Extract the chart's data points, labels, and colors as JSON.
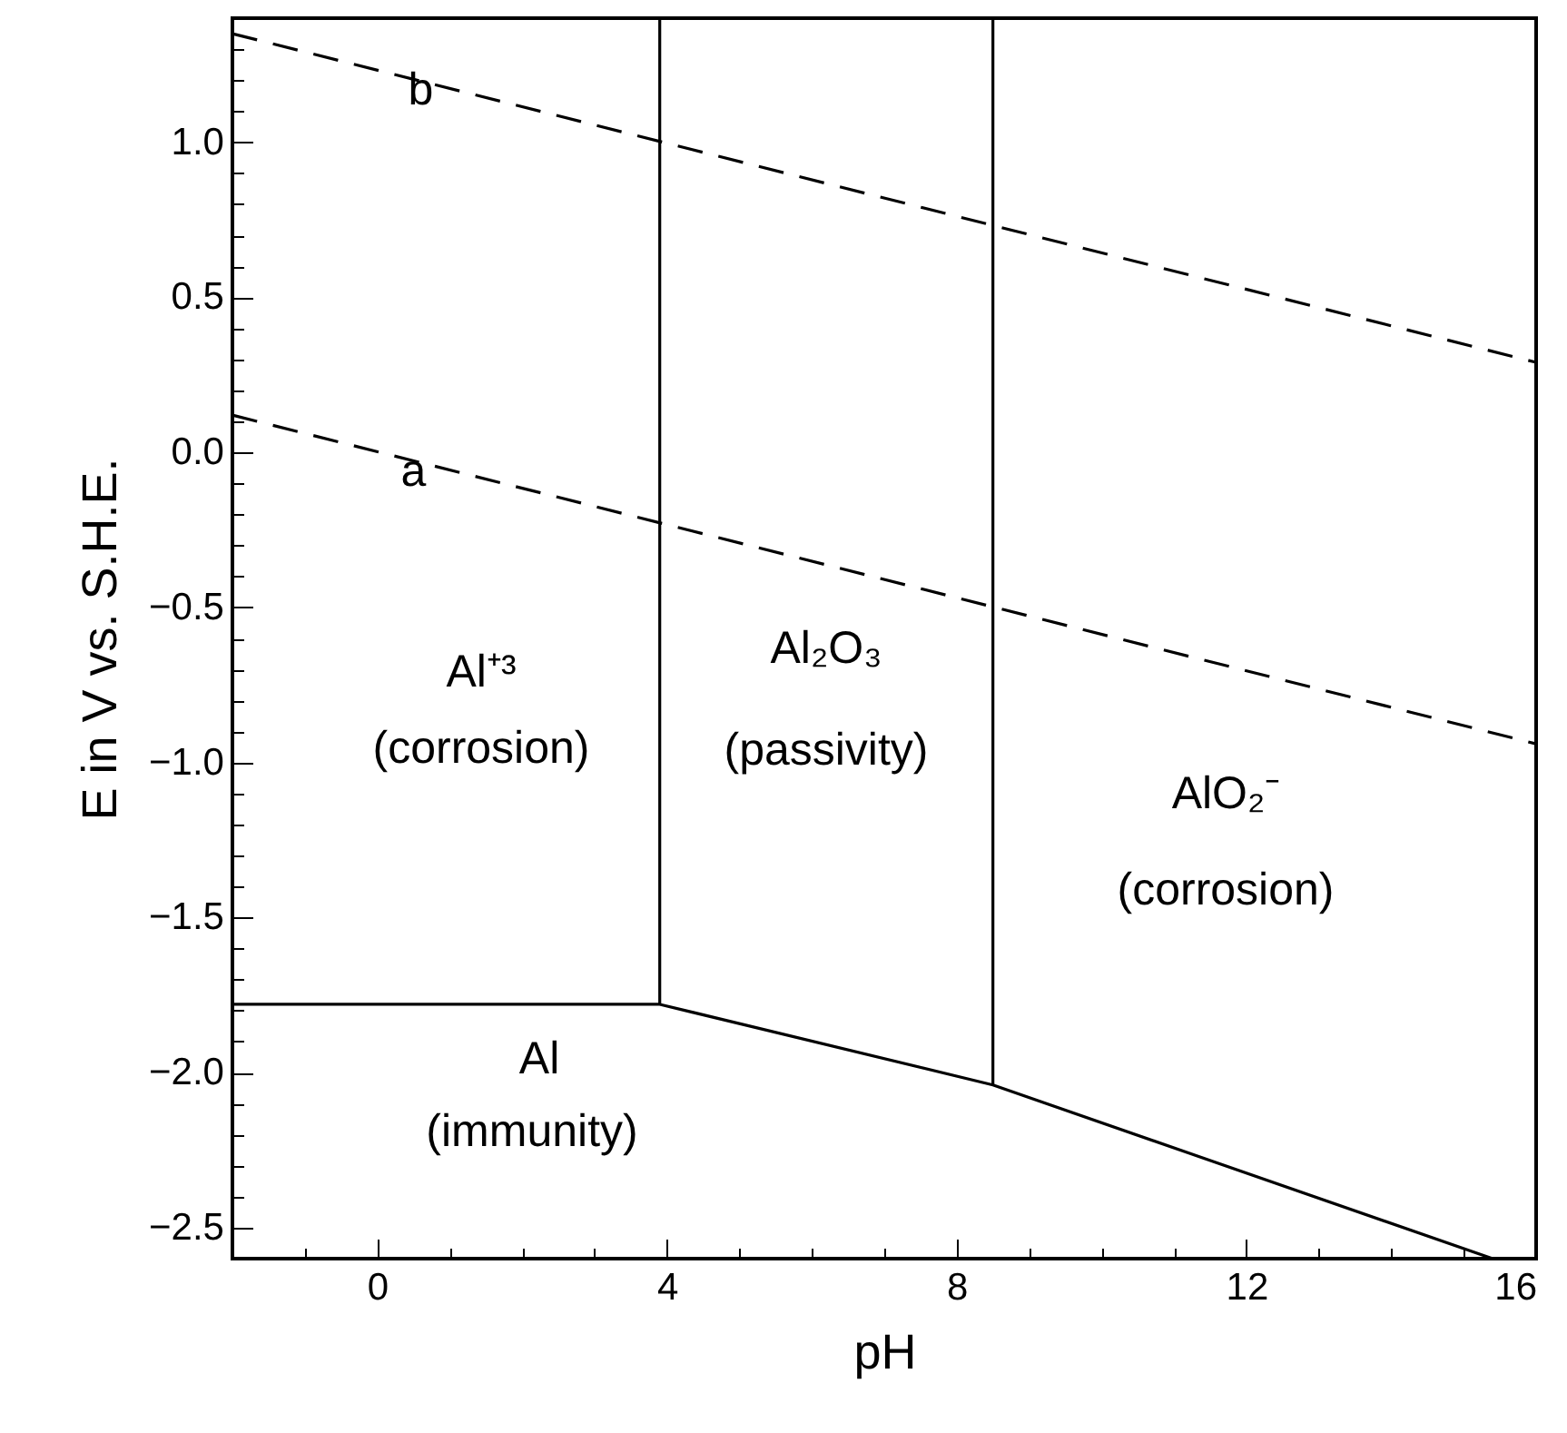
{
  "chart_data": {
    "type": "line",
    "xlabel": "pH",
    "ylabel": "E in V vs. S.H.E.",
    "xlim": [
      -2,
      16
    ],
    "ylim": [
      -2.6,
      1.4
    ],
    "xticks": [
      {
        "value": -1,
        "label": null
      },
      0,
      {
        "value": 1,
        "label": null
      },
      {
        "value": 2,
        "label": null
      },
      {
        "value": 3,
        "label": null
      },
      4,
      {
        "value": 5,
        "label": null
      },
      {
        "value": 6,
        "label": null
      },
      {
        "value": 7,
        "label": null
      },
      8,
      {
        "value": 9,
        "label": null
      },
      {
        "value": 10,
        "label": null
      },
      {
        "value": 11,
        "label": null
      },
      12,
      {
        "value": 13,
        "label": null
      },
      {
        "value": 14,
        "label": null
      },
      {
        "value": 15,
        "label": null
      },
      16
    ],
    "yticks": [
      {
        "value": -2.5,
        "label": "−2.5"
      },
      {
        "value": -2.4,
        "label": null
      },
      {
        "value": -2.3,
        "label": null
      },
      {
        "value": -2.2,
        "label": null
      },
      {
        "value": -2.1,
        "label": null
      },
      {
        "value": -2.0,
        "label": "−2.0"
      },
      {
        "value": -1.9,
        "label": null
      },
      {
        "value": -1.8,
        "label": null
      },
      {
        "value": -1.7,
        "label": null
      },
      {
        "value": -1.6,
        "label": null
      },
      {
        "value": -1.5,
        "label": "−1.5"
      },
      {
        "value": -1.4,
        "label": null
      },
      {
        "value": -1.3,
        "label": null
      },
      {
        "value": -1.2,
        "label": null
      },
      {
        "value": -1.1,
        "label": null
      },
      {
        "value": -1.0,
        "label": "−1.0"
      },
      {
        "value": -0.9,
        "label": null
      },
      {
        "value": -0.8,
        "label": null
      },
      {
        "value": -0.7,
        "label": null
      },
      {
        "value": -0.6,
        "label": null
      },
      {
        "value": -0.5,
        "label": "−0.5"
      },
      {
        "value": -0.4,
        "label": null
      },
      {
        "value": -0.3,
        "label": null
      },
      {
        "value": -0.2,
        "label": null
      },
      {
        "value": -0.1,
        "label": null
      },
      {
        "value": 0,
        "label": "0.0"
      },
      {
        "value": 0.1,
        "label": null
      },
      {
        "value": 0.2,
        "label": null
      },
      {
        "value": 0.3,
        "label": null
      },
      {
        "value": 0.4,
        "label": null
      },
      {
        "value": 0.5,
        "label": "0.5"
      },
      {
        "value": 0.6,
        "label": null
      },
      {
        "value": 0.7,
        "label": null
      },
      {
        "value": 0.8,
        "label": null
      },
      {
        "value": 0.9,
        "label": null
      },
      {
        "value": 1.0,
        "label": "1.0"
      },
      {
        "value": 1.1,
        "label": null
      },
      {
        "value": 1.2,
        "label": null
      },
      {
        "value": 1.3,
        "label": null
      }
    ],
    "series": [
      {
        "color": "#000000",
        "line_style": "dashed",
        "x": [
          -2,
          16
        ],
        "values": [
          1.35,
          0.29
        ]
      },
      {
        "color": "#000000",
        "line_style": "dashed",
        "x": [
          -2,
          16
        ],
        "values": [
          0.12,
          -0.94
        ]
      },
      {
        "color": "#000000",
        "line_style": "solid",
        "x": [
          3.9,
          3.9
        ],
        "values": [
          -1.78,
          1.4
        ]
      },
      {
        "color": "#000000",
        "line_style": "solid",
        "x": [
          8.5,
          8.5
        ],
        "values": [
          -2.04,
          1.4
        ]
      },
      {
        "color": "#000000",
        "line_style": "solid",
        "x": [
          -2,
          3.9,
          8.5,
          15.4
        ],
        "values": [
          -1.78,
          -1.78,
          -2.04,
          -2.6
        ]
      }
    ],
    "marker": "none",
    "annotations": [
      {
        "text": "b",
        "x": 0.6,
        "y": 1.17
      },
      {
        "text": "a",
        "x": 0.5,
        "y": -0.06
      },
      "Al⁺³",
      "(corrosion)",
      "Al₂O₃",
      "(passivity)",
      "AlO₂⁻",
      "(corrosion)",
      "Al",
      "(immunity)"
    ]
  }
}
